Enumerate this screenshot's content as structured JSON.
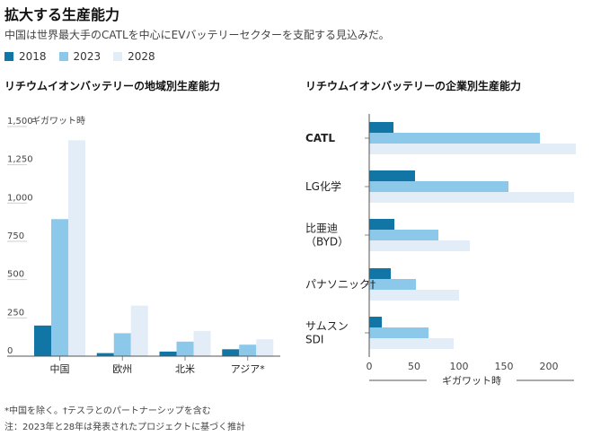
{
  "header": {
    "title": "拡大する生産能力",
    "subtitle": "中国は世界最大手のCATLを中心にEVバッテリーセクターを支配する見込みだ。"
  },
  "legend": [
    {
      "label": "2018",
      "color": "#1176a6"
    },
    {
      "label": "2023",
      "color": "#8cc8ea"
    },
    {
      "label": "2028",
      "color": "#e2edf7"
    }
  ],
  "chart_data": [
    {
      "type": "bar",
      "orientation": "vertical",
      "title": "リチウムイオンバッテリーの地域別生産能力",
      "unit_label": "ギガワット時",
      "categories": [
        "中国",
        "欧州",
        "北米",
        "アジア*"
      ],
      "series": [
        {
          "name": "2018",
          "values": [
            200,
            20,
            30,
            45
          ]
        },
        {
          "name": "2023",
          "values": [
            895,
            150,
            95,
            75
          ]
        },
        {
          "name": "2028",
          "values": [
            1410,
            330,
            165,
            110
          ]
        }
      ],
      "ylim": [
        0,
        1500
      ],
      "yticks": [
        0,
        250,
        500,
        750,
        1000,
        1250,
        1500
      ],
      "ytick_labels": [
        "0",
        "250",
        "500",
        "750",
        "1,000",
        "1,250",
        "1,500"
      ],
      "grid": false
    },
    {
      "type": "bar",
      "orientation": "horizontal",
      "title": "リチウムイオンバッテリーの企業別生産能力",
      "xlabel": "ギガワット時",
      "categories": [
        [
          "CATL"
        ],
        [
          "LG化学"
        ],
        [
          "比亜迪",
          "（BYD）"
        ],
        [
          "パナソニック†"
        ],
        [
          "サムスン",
          "SDI"
        ]
      ],
      "series": [
        {
          "name": "2018",
          "values": [
            27,
            51,
            28,
            24,
            14
          ]
        },
        {
          "name": "2023",
          "values": [
            190,
            155,
            77,
            52,
            66
          ]
        },
        {
          "name": "2028",
          "values": [
            230,
            228,
            112,
            100,
            94
          ]
        }
      ],
      "xlim": [
        0,
        230
      ],
      "xticks": [
        0,
        50,
        100,
        150,
        200
      ],
      "xtick_labels": [
        "0",
        "50",
        "100",
        "150",
        "200"
      ],
      "grid": false
    }
  ],
  "footnotes": {
    "line1": "*中国を除く。†テスラとのパートナーシップを含む",
    "line2": "注：2023年と28年は発表されたプロジェクトに基づく推計"
  }
}
